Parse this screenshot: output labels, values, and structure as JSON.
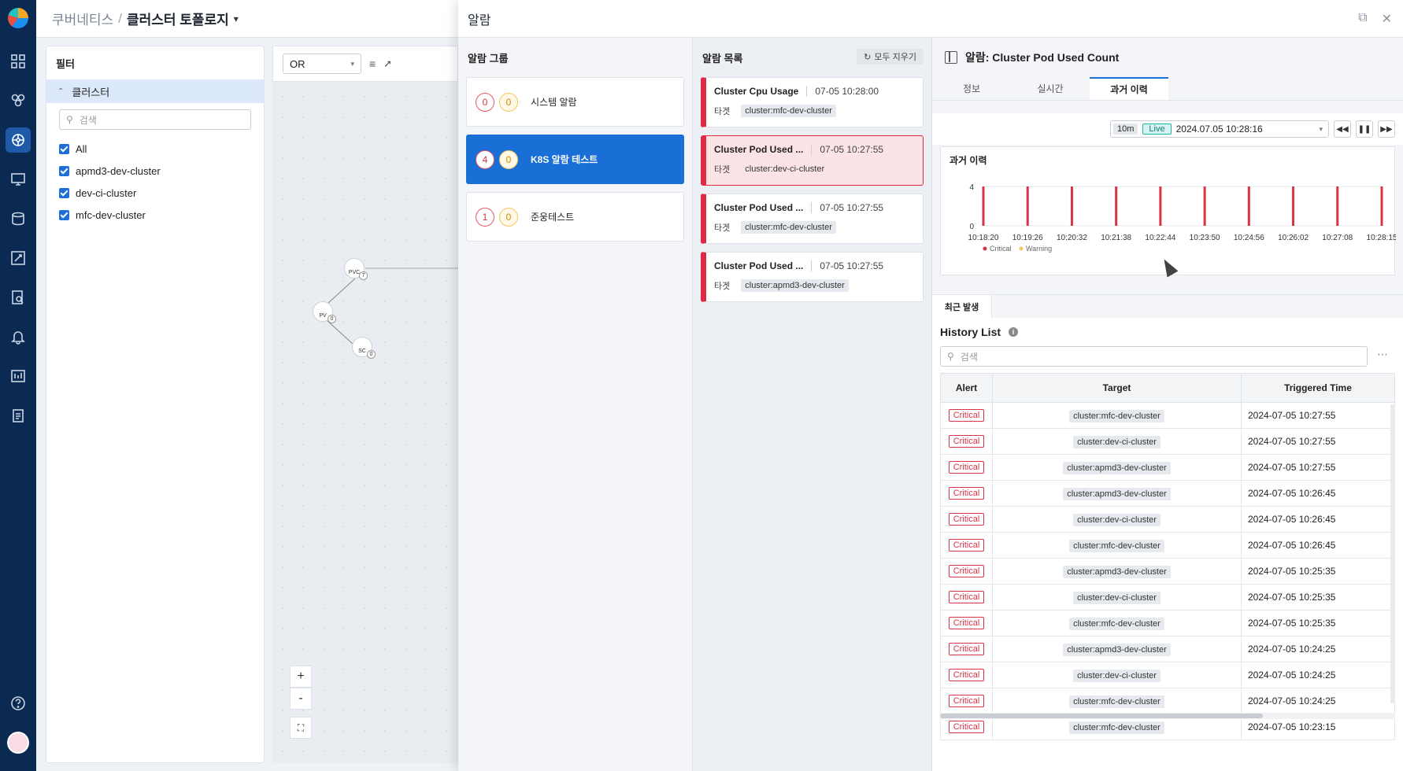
{
  "rail": {
    "items": [
      "grid-icon",
      "hex-cluster-icon",
      "kubernetes-icon",
      "monitor-icon",
      "database-icon",
      "tools-icon",
      "report-search-icon",
      "bell-icon",
      "dashboard-icon",
      "clipboard-icon",
      "help-icon"
    ]
  },
  "header": {
    "crumb": "쿠버네티스",
    "sep": "/",
    "title": "클러스터 토폴로지"
  },
  "filter": {
    "title": "필터",
    "group": "클러스터",
    "search_placeholder": "검색",
    "options": [
      "All",
      "apmd3-dev-cluster",
      "dev-ci-cluster",
      "mfc-dev-cluster"
    ]
  },
  "topology": {
    "operator": "OR",
    "nodes": [
      {
        "label": "PVC",
        "count": "7"
      },
      {
        "label": "PV",
        "count": "0"
      },
      {
        "label": "SC",
        "count": "0"
      }
    ],
    "zoom_in": "+",
    "zoom_out": "-"
  },
  "drawer": {
    "title": "알람",
    "groups_title": "알람 그룹",
    "groups": [
      {
        "crit": "0",
        "warn": "0",
        "name": "시스템 알람"
      },
      {
        "crit": "4",
        "warn": "0",
        "name": "K8S 알람 테스트"
      },
      {
        "crit": "1",
        "warn": "0",
        "name": "준웅테스트"
      }
    ],
    "list_title": "알람 목록",
    "clear_all": "모두 지우기",
    "target_label": "타겟",
    "alarms": [
      {
        "name": "Cluster Cpu Usage",
        "time": "07-05 10:28:00",
        "target": "cluster:mfc-dev-cluster"
      },
      {
        "name": "Cluster Pod Used ...",
        "time": "07-05 10:27:55",
        "target": "cluster:dev-ci-cluster"
      },
      {
        "name": "Cluster Pod Used ...",
        "time": "07-05 10:27:55",
        "target": "cluster:mfc-dev-cluster"
      },
      {
        "name": "Cluster Pod Used ...",
        "time": "07-05 10:27:55",
        "target": "cluster:apmd3-dev-cluster"
      }
    ],
    "detail": {
      "title": "알람: Cluster Pod Used Count",
      "tabs": [
        "정보",
        "실시간",
        "과거 이력"
      ],
      "range": "10m",
      "live": "Live",
      "datetime": "2024.07.05 10:28:16",
      "chart_title": "과거 이력",
      "recent_tab": "최근 발생",
      "history_title": "History List",
      "search_placeholder": "검색",
      "columns": [
        "Alert",
        "Target",
        "Triggered Time"
      ],
      "rows": [
        {
          "alert": "Critical",
          "target": "cluster:mfc-dev-cluster",
          "time": "2024-07-05 10:27:55"
        },
        {
          "alert": "Critical",
          "target": "cluster:dev-ci-cluster",
          "time": "2024-07-05 10:27:55"
        },
        {
          "alert": "Critical",
          "target": "cluster:apmd3-dev-cluster",
          "time": "2024-07-05 10:27:55"
        },
        {
          "alert": "Critical",
          "target": "cluster:apmd3-dev-cluster",
          "time": "2024-07-05 10:26:45"
        },
        {
          "alert": "Critical",
          "target": "cluster:dev-ci-cluster",
          "time": "2024-07-05 10:26:45"
        },
        {
          "alert": "Critical",
          "target": "cluster:mfc-dev-cluster",
          "time": "2024-07-05 10:26:45"
        },
        {
          "alert": "Critical",
          "target": "cluster:apmd3-dev-cluster",
          "time": "2024-07-05 10:25:35"
        },
        {
          "alert": "Critical",
          "target": "cluster:dev-ci-cluster",
          "time": "2024-07-05 10:25:35"
        },
        {
          "alert": "Critical",
          "target": "cluster:mfc-dev-cluster",
          "time": "2024-07-05 10:25:35"
        },
        {
          "alert": "Critical",
          "target": "cluster:apmd3-dev-cluster",
          "time": "2024-07-05 10:24:25"
        },
        {
          "alert": "Critical",
          "target": "cluster:dev-ci-cluster",
          "time": "2024-07-05 10:24:25"
        },
        {
          "alert": "Critical",
          "target": "cluster:mfc-dev-cluster",
          "time": "2024-07-05 10:24:25"
        },
        {
          "alert": "Critical",
          "target": "cluster:mfc-dev-cluster",
          "time": "2024-07-05 10:23:15"
        }
      ]
    }
  },
  "chart_data": {
    "type": "bar",
    "title": "과거 이력",
    "categories": [
      "10:18:20",
      "10:19:26",
      "10:20:32",
      "10:21:38",
      "10:22:44",
      "10:23:50",
      "10:24:56",
      "10:26:02",
      "10:27:08",
      "10:28:15"
    ],
    "series": [
      {
        "name": "Critical",
        "color": "#d63447",
        "values": [
          4,
          4,
          4,
          4,
          4,
          4,
          4,
          4,
          4,
          4
        ]
      },
      {
        "name": "Warning",
        "color": "#f1c561",
        "values": [
          0,
          0,
          0,
          0,
          0,
          0,
          0,
          0,
          0,
          0
        ]
      }
    ],
    "yticks": [
      "4",
      "0"
    ],
    "ylim": [
      0,
      4
    ],
    "grid": true,
    "legend": "bottom-left"
  }
}
